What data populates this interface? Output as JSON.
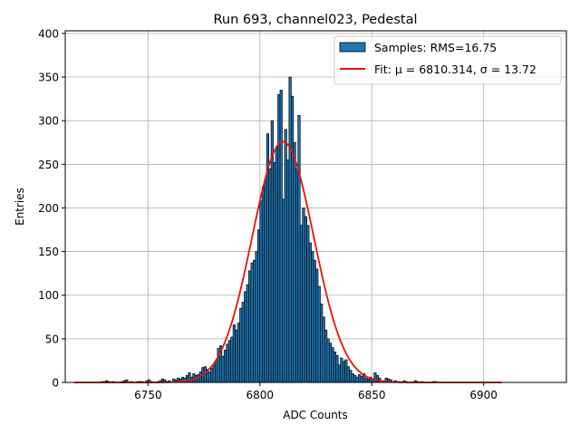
{
  "chart_data": {
    "type": "bar",
    "title": "Run 693, channel023, Pedestal",
    "xlabel": "ADC Counts",
    "ylabel": "Entries",
    "xlim": [
      6713,
      6937
    ],
    "ylim": [
      0,
      403
    ],
    "xticks": [
      6750,
      6800,
      6850,
      6900
    ],
    "yticks": [
      0,
      50,
      100,
      150,
      200,
      250,
      300,
      350,
      400
    ],
    "grid": true,
    "legend_position": "top-right",
    "bin_start": 6717,
    "bin_width": 1,
    "histogram_values": [
      0,
      0,
      0,
      0,
      0,
      0,
      0,
      0,
      0,
      0,
      0,
      0,
      1,
      1,
      2,
      1,
      0,
      1,
      0,
      0,
      0,
      1,
      2,
      3,
      0,
      1,
      0,
      0,
      1,
      1,
      1,
      0,
      2,
      3,
      1,
      0,
      0,
      1,
      2,
      4,
      3,
      1,
      2,
      0,
      4,
      3,
      5,
      4,
      6,
      5,
      8,
      11,
      6,
      10,
      8,
      9,
      12,
      17,
      18,
      15,
      12,
      16,
      20,
      24,
      39,
      42,
      30,
      37,
      44,
      48,
      52,
      66,
      60,
      68,
      85,
      92,
      104,
      112,
      128,
      137,
      140,
      150,
      175,
      208,
      224,
      232,
      285,
      245,
      300,
      252,
      270,
      330,
      335,
      210,
      290,
      255,
      350,
      328,
      275,
      245,
      306,
      180,
      200,
      190,
      180,
      160,
      150,
      140,
      130,
      110,
      90,
      75,
      60,
      50,
      45,
      40,
      35,
      31,
      20,
      28,
      24,
      26,
      18,
      14,
      10,
      8,
      6,
      9,
      7,
      10,
      5,
      4,
      6,
      3,
      11,
      8,
      5,
      2,
      2,
      5,
      4,
      3,
      0,
      2,
      1,
      1,
      0,
      2,
      1,
      0,
      0,
      0,
      2,
      1,
      0,
      1,
      0,
      0,
      0,
      0,
      1,
      1,
      0,
      0,
      0,
      0,
      0,
      0,
      0,
      0,
      0,
      0,
      0,
      0,
      0,
      0,
      0,
      0,
      0,
      0,
      0,
      0,
      0,
      0,
      0,
      0,
      0,
      0,
      0,
      0,
      0,
      0,
      0
    ],
    "bar_color": "#1f77b4",
    "series": [
      {
        "name": "Samples: RMS=16.75",
        "kind": "histogram"
      },
      {
        "name": "Fit: μ = 6810.314, σ = 13.72",
        "kind": "gaussian-fit",
        "mu": 6810.314,
        "sigma": 13.72,
        "amplitude": 276,
        "x_range": [
          6717,
          6908
        ],
        "color": "#e8120c"
      }
    ]
  }
}
